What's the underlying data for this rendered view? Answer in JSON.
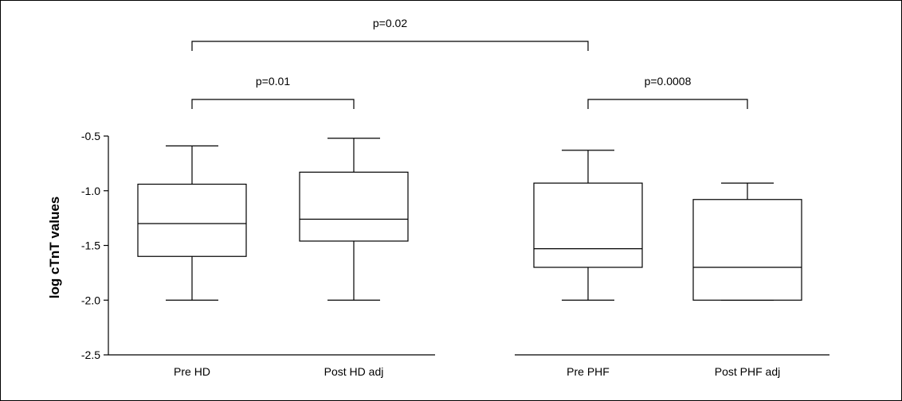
{
  "chart_data": {
    "type": "boxplot",
    "title": "",
    "xlabel": "",
    "ylabel": "log cTnT values",
    "ylim": [
      -2.5,
      -0.5
    ],
    "yticks": [
      -0.5,
      -1.0,
      -1.5,
      -2.0,
      -2.5
    ],
    "ytick_labels": [
      "-0.5",
      "-1.0",
      "-1.5",
      "-2.0",
      "-2.5"
    ],
    "grid": false,
    "categories": [
      "Pre HD",
      "Post HD adj",
      "Pre PHF",
      "Post PHF adj"
    ],
    "boxes": [
      {
        "category": "Pre HD",
        "min": -2.0,
        "q1": -1.6,
        "median": -1.3,
        "q3": -0.94,
        "max": -0.59
      },
      {
        "category": "Post HD adj",
        "min": -2.0,
        "q1": -1.46,
        "median": -1.26,
        "q3": -0.83,
        "max": -0.52
      },
      {
        "category": "Pre PHF",
        "min": -2.0,
        "q1": -1.7,
        "median": -1.53,
        "q3": -0.93,
        "max": -0.63
      },
      {
        "category": "Post PHF adj",
        "min": -2.0,
        "q1": -2.0,
        "median": -1.7,
        "q3": -1.08,
        "max": -0.93
      }
    ],
    "comparisons": [
      {
        "from": "Pre HD",
        "to": "Post HD adj",
        "label": "p=0.01",
        "level": 1
      },
      {
        "from": "Pre PHF",
        "to": "Post PHF adj",
        "label": "p=0.0008",
        "level": 1
      },
      {
        "from": "Pre HD",
        "to": "Pre PHF",
        "label": "p=0.02",
        "level": 2
      }
    ]
  }
}
